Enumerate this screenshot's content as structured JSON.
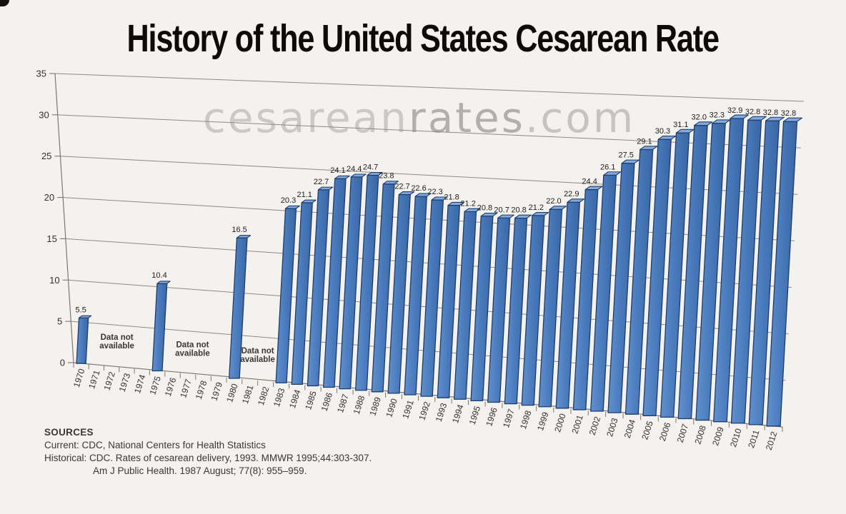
{
  "title": "History of the United States Cesarean Rate",
  "watermark": {
    "first": "cesarean",
    "second": "rates",
    "third": ".com"
  },
  "chart_data": {
    "type": "bar",
    "title": "History of the United States Cesarean Rate",
    "categories": [
      "1970",
      "1971",
      "1972",
      "1973",
      "1974",
      "1975",
      "1976",
      "1977",
      "1978",
      "1979",
      "1980",
      "1981",
      "1982",
      "1983",
      "1984",
      "1985",
      "1986",
      "1987",
      "1988",
      "1989",
      "1990",
      "1991",
      "1992",
      "1993",
      "1994",
      "1995",
      "1996",
      "1997",
      "1998",
      "1999",
      "2000",
      "2001",
      "2002",
      "2003",
      "2004",
      "2005",
      "2006",
      "2007",
      "2008",
      "2009",
      "2010",
      "2011",
      "2012"
    ],
    "values": [
      5.5,
      null,
      null,
      null,
      null,
      10.4,
      null,
      null,
      null,
      null,
      16.5,
      null,
      null,
      20.3,
      21.1,
      22.7,
      24.1,
      24.4,
      24.7,
      23.8,
      22.7,
      22.6,
      22.3,
      21.8,
      21.2,
      20.8,
      20.7,
      20.8,
      21.2,
      22.0,
      22.9,
      24.4,
      26.1,
      27.5,
      29.1,
      30.3,
      31.1,
      32.0,
      32.3,
      32.9,
      32.8,
      32.8,
      32.8
    ],
    "bar_labels": [
      "5.5",
      null,
      null,
      null,
      null,
      "10.4",
      null,
      null,
      null,
      null,
      "16.5",
      null,
      null,
      "20.3",
      "21.1",
      "22.7",
      "24.1",
      "24.4",
      "24.7",
      "23.8",
      "22.7",
      "22.6",
      "22.3",
      "21.8",
      "21.2",
      "20.8",
      "20.7",
      "20.8",
      "21.2",
      "22.0",
      "22.9",
      "24.4",
      "26.1",
      "27.5",
      "29.1",
      "30.3",
      "31.1",
      "32.0",
      "32.3",
      "32.9",
      "32.8",
      "32.8",
      "32.8"
    ],
    "ylim": [
      0,
      35
    ],
    "yticks": [
      0,
      5,
      10,
      15,
      20,
      25,
      30,
      35
    ],
    "grid": true,
    "legend": false,
    "missing_note": {
      "line1": "Data not",
      "line2": "available"
    },
    "missing_ranges": [
      "1971-1974",
      "1976-1979",
      "1981-1982"
    ],
    "colors": {
      "bar_front": "#4a7bbd",
      "bar_front_light": "#6290ce",
      "bar_front_dark": "#3a67a5",
      "bar_top": "#85aadd",
      "bar_outline": "#1e3c69",
      "gridline": "#8f897e",
      "axis": "#7c766c",
      "label_text": "#1f1d1a",
      "tick_text": "#33302c"
    }
  },
  "sources": {
    "heading": "SOURCES",
    "line1": "Current: CDC, National Centers for Health Statistics",
    "line2": "Historical: CDC. Rates of cesarean delivery, 1993. MMWR 1995;44:303-307.",
    "line3": "Am J Public Health. 1987 August; 77(8): 955–959."
  }
}
